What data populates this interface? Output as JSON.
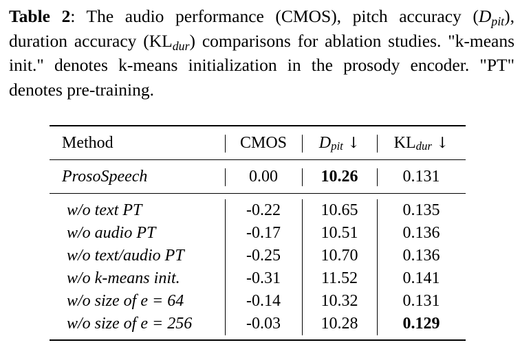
{
  "caption": {
    "label": "Table 2",
    "text_1": ": The audio performance (CMOS), pitch accuracy (",
    "dpit_base": "D",
    "dpit_sub": "pit",
    "text_2": "), duration accuracy (KL",
    "kl_sub": "dur",
    "text_3": ") comparisons for ablation studies. \"k-means init.\" denotes k-means initialization in the prosody encoder. \"PT\" denotes pre-training."
  },
  "table": {
    "headers": {
      "method": "Method",
      "cmos": "CMOS",
      "dpit_base": "D",
      "dpit_sub": "pit",
      "kl_base": "KL",
      "kl_sub": "dur",
      "arrow": "↓"
    },
    "main_row": {
      "method": "ProsoSpeech",
      "cmos": "0.00",
      "dpit": "10.26",
      "kl": "0.131"
    },
    "rows": [
      {
        "method": "w/o text PT",
        "cmos": "-0.22",
        "dpit": "10.65",
        "kl": "0.135"
      },
      {
        "method": "w/o audio PT",
        "cmos": "-0.17",
        "dpit": "10.51",
        "kl": "0.136"
      },
      {
        "method": "w/o text/audio PT",
        "cmos": "-0.25",
        "dpit": "10.70",
        "kl": "0.136"
      },
      {
        "method": "w/o k-means init.",
        "cmos": "-0.31",
        "dpit": "11.52",
        "kl": "0.141"
      },
      {
        "method": "w/o size of e = 64",
        "cmos": "-0.14",
        "dpit": "10.32",
        "kl": "0.131"
      },
      {
        "method": "w/o size of e = 256",
        "cmos": "-0.03",
        "dpit": "10.28",
        "kl": "0.129"
      }
    ]
  }
}
